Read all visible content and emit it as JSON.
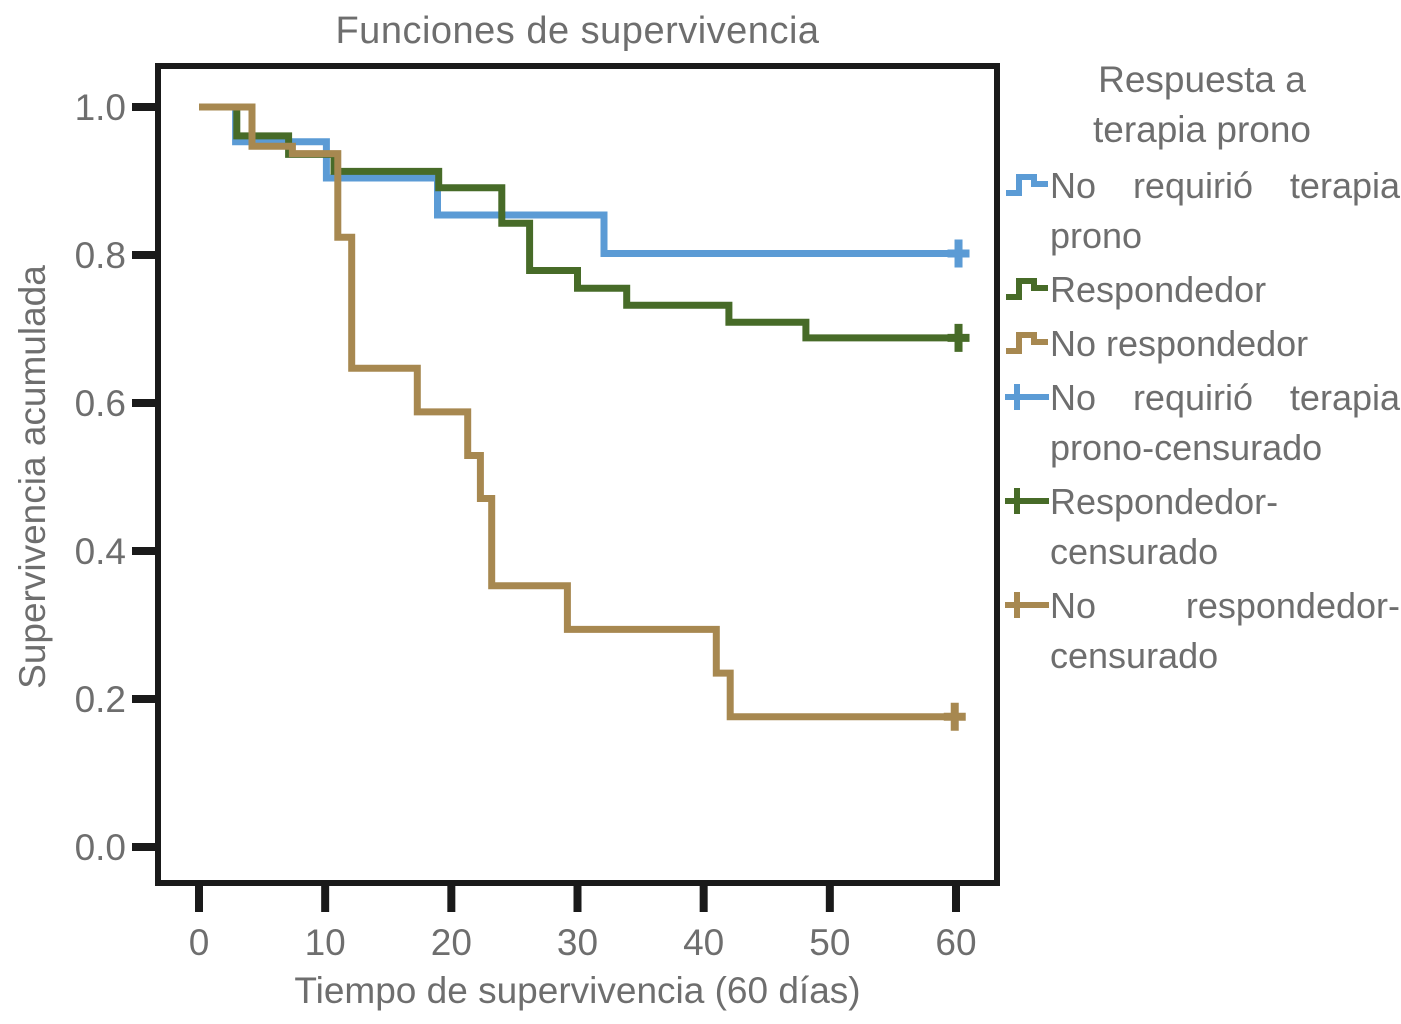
{
  "figure": {
    "title": "Funciones de supervivencia",
    "x_axis": {
      "label": "Tiempo de supervivencia (60 días)",
      "ticks": [
        {
          "v": 0,
          "label": "0"
        },
        {
          "v": 10,
          "label": "10"
        },
        {
          "v": 20,
          "label": "20"
        },
        {
          "v": 30,
          "label": "30"
        },
        {
          "v": 40,
          "label": "40"
        },
        {
          "v": 50,
          "label": "50"
        },
        {
          "v": 60,
          "label": "60"
        }
      ]
    },
    "y_axis": {
      "label": "Supervivencia acumulada",
      "ticks": [
        {
          "v": 1.0,
          "label": "1.0"
        },
        {
          "v": 0.8,
          "label": "0.8"
        },
        {
          "v": 0.6,
          "label": "0.6"
        },
        {
          "v": 0.4,
          "label": "0.4"
        },
        {
          "v": 0.2,
          "label": "0.2"
        },
        {
          "v": 0.0,
          "label": "0.0"
        }
      ]
    }
  },
  "legend": {
    "title": "Respuesta a terapia prono",
    "items": [
      {
        "label": "No requirió terapia prono",
        "marker": "step",
        "color": "#5B9BD5"
      },
      {
        "label": "Respondedor",
        "marker": "step",
        "color": "#476B28"
      },
      {
        "label": "No respondedor",
        "marker": "step",
        "color": "#A78850"
      },
      {
        "label": "No requirió terapia prono-censurado",
        "marker": "plus",
        "color": "#5B9BD5"
      },
      {
        "label": "Respondedor-censurado",
        "marker": "plus",
        "color": "#476B28"
      },
      {
        "label": "No respondedor-censurado",
        "marker": "plus",
        "color": "#A78850"
      }
    ]
  },
  "colors": {
    "no_prono_blue": "#5B9BD5",
    "respondedor_green": "#476B28",
    "no_respondedor_brown": "#A78850",
    "axis_black": "#1A1A1A",
    "text_gray": "#6E6E6E"
  },
  "chart_data": {
    "type": "line",
    "subtype": "kaplan-meier-step-survival",
    "title": "Funciones de supervivencia",
    "xlabel": "Tiempo de supervivencia (60 días)",
    "ylabel": "Supervivencia acumulada",
    "xlim": [
      0,
      63
    ],
    "ylim": [
      0,
      1.05
    ],
    "x_ticks": [
      0,
      10,
      20,
      30,
      40,
      50,
      60
    ],
    "y_ticks": [
      0.0,
      0.2,
      0.4,
      0.6,
      0.8,
      1.0
    ],
    "grid": false,
    "legend_position": "right",
    "legend_title": "Respuesta a terapia prono",
    "series": [
      {
        "name": "No requirió terapia prono",
        "color": "#5B9BD5",
        "steps": [
          [
            0,
            1.0
          ],
          [
            2.9,
            0.953
          ],
          [
            10.1,
            0.904
          ],
          [
            18.9,
            0.854
          ],
          [
            32.1,
            0.802
          ]
        ],
        "end_t": 60.3,
        "censored": [
          [
            60.2,
            0.802
          ]
        ]
      },
      {
        "name": "Respondedor",
        "color": "#476B28",
        "steps": [
          [
            0,
            1.0
          ],
          [
            3.0,
            0.961
          ],
          [
            7.1,
            0.936
          ],
          [
            10.7,
            0.913
          ],
          [
            19.0,
            0.891
          ],
          [
            24.0,
            0.843
          ],
          [
            26.2,
            0.779
          ],
          [
            30.0,
            0.755
          ],
          [
            33.9,
            0.732
          ],
          [
            42.0,
            0.709
          ],
          [
            48.1,
            0.688
          ]
        ],
        "end_t": 60.3,
        "censored": [
          [
            60.2,
            0.688
          ]
        ]
      },
      {
        "name": "No respondedor",
        "color": "#A78850",
        "steps": [
          [
            0,
            1.0
          ],
          [
            4.2,
            0.947
          ],
          [
            7.4,
            0.937
          ],
          [
            11.0,
            0.824
          ],
          [
            12.1,
            0.647
          ],
          [
            17.3,
            0.588
          ],
          [
            21.3,
            0.529
          ],
          [
            22.3,
            0.471
          ],
          [
            23.2,
            0.353
          ],
          [
            29.2,
            0.294
          ],
          [
            41.0,
            0.235
          ],
          [
            42.1,
            0.176
          ]
        ],
        "end_t": 60.2,
        "censored": [
          [
            59.9,
            0.176
          ]
        ]
      }
    ]
  }
}
